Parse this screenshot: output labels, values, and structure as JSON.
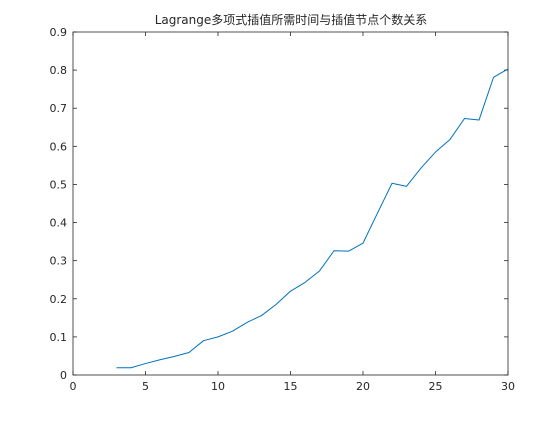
{
  "chart_data": {
    "type": "line",
    "title": "Lagrange多项式插值所需时间与插值节点个数关系",
    "xlabel": "",
    "ylabel": "",
    "xlim": [
      0,
      30
    ],
    "ylim": [
      0,
      0.9
    ],
    "grid": false,
    "legend": "none",
    "xticks": [
      0,
      5,
      10,
      15,
      20,
      25,
      30
    ],
    "xtick_labels": [
      "0",
      "5",
      "10",
      "15",
      "20",
      "25",
      "30"
    ],
    "yticks": [
      0,
      0.1,
      0.2,
      0.3,
      0.4,
      0.5,
      0.6,
      0.7,
      0.8,
      0.9
    ],
    "ytick_labels": [
      "0",
      "0.1",
      "0.2",
      "0.3",
      "0.4",
      "0.5",
      "0.6",
      "0.7",
      "0.8",
      "0.9"
    ],
    "line_color": "#0072BD",
    "series": [
      {
        "x": [
          3,
          4,
          5,
          6,
          7,
          8,
          9,
          10,
          11,
          12,
          13,
          14,
          15,
          16,
          17,
          18,
          19,
          20,
          21,
          22,
          23,
          24,
          25,
          26,
          27,
          28,
          29,
          30
        ],
        "y": [
          0.019,
          0.019,
          0.03,
          0.04,
          0.049,
          0.059,
          0.09,
          0.1,
          0.115,
          0.138,
          0.156,
          0.185,
          0.22,
          0.243,
          0.273,
          0.326,
          0.325,
          0.346,
          0.425,
          0.503,
          0.495,
          0.543,
          0.585,
          0.618,
          0.673,
          0.669,
          0.781,
          0.803
        ]
      }
    ]
  }
}
